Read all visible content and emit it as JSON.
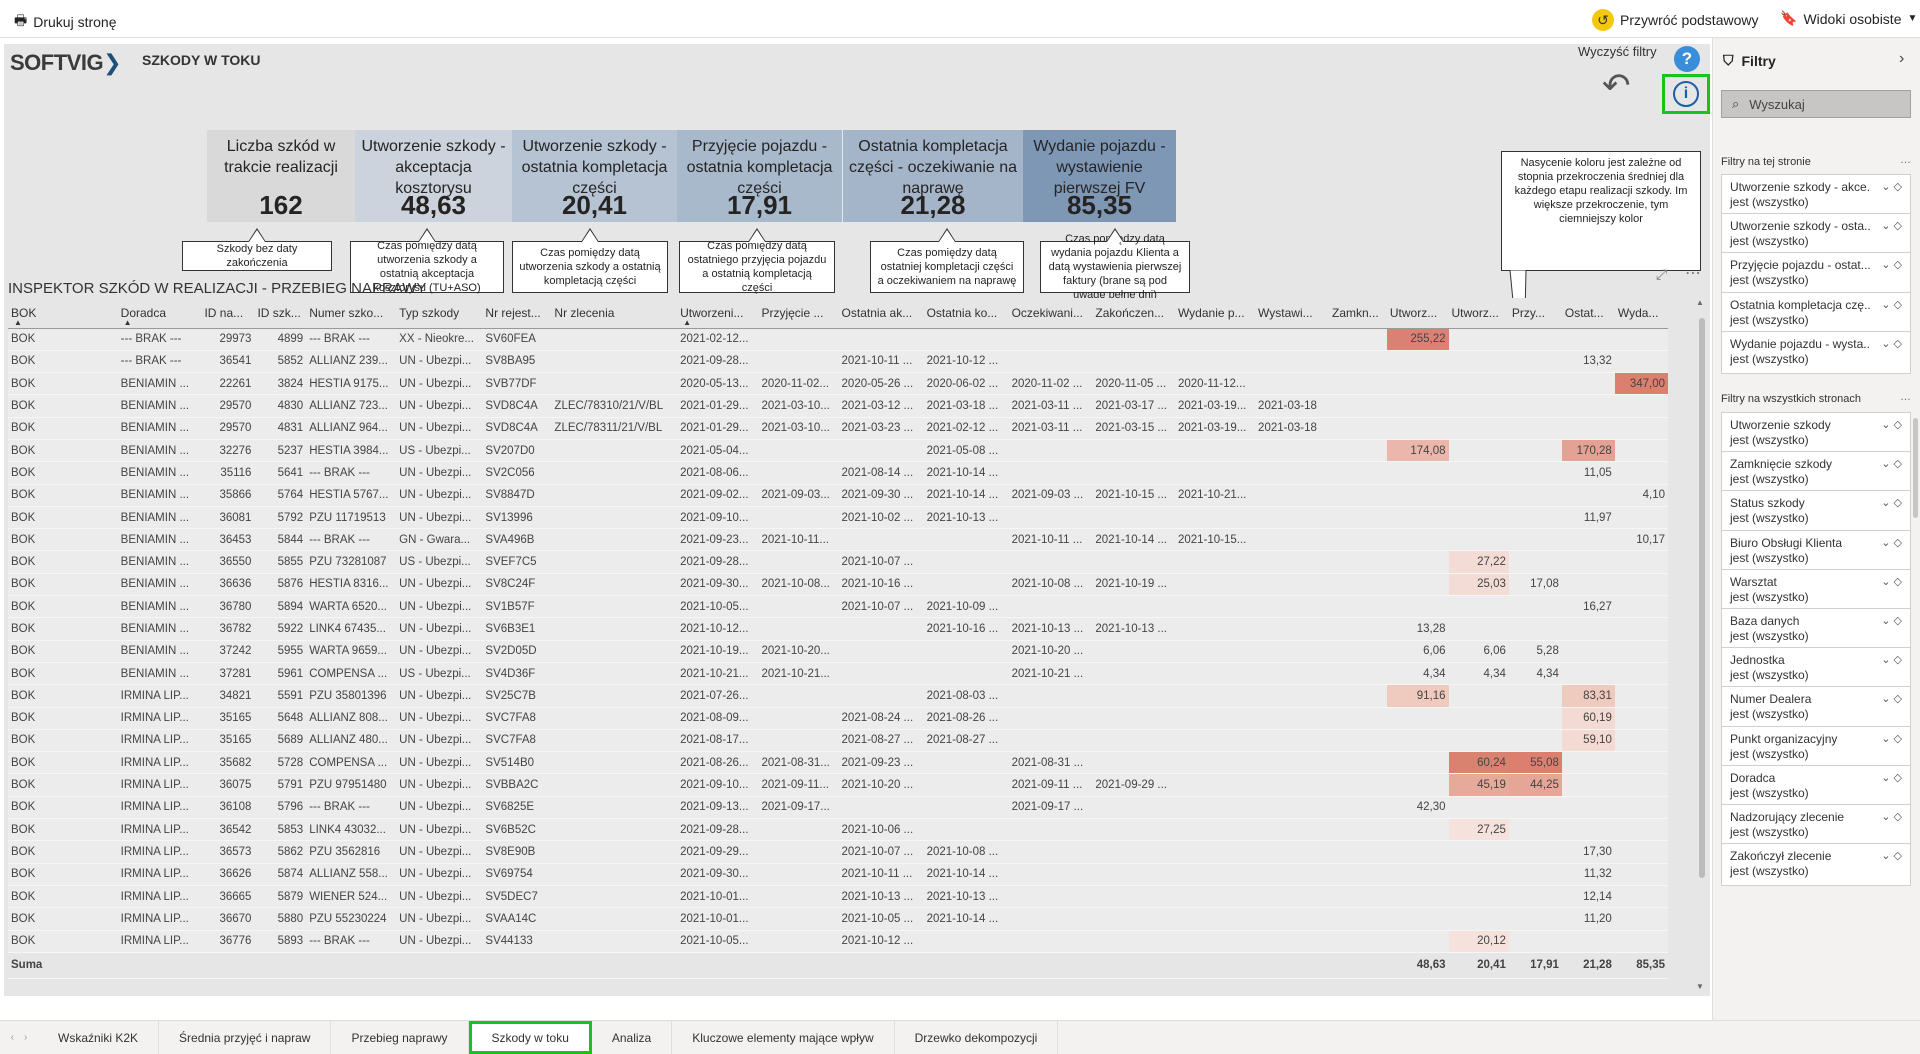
{
  "toolbar": {
    "print_label": "Drukuj stronę",
    "reset_label": "Przywróć podstawowy",
    "views_label": "Widoki osobiste"
  },
  "report": {
    "logo": "SOFTVIG",
    "title": "SZKODY W TOKU",
    "clear_filters": "Wyczyść filtry",
    "help_glyph": "?",
    "info_glyph": "i"
  },
  "kpis": [
    {
      "label": "Liczba szkód w trakcie realizacji",
      "value": "162",
      "bg": "#d9d9d9"
    },
    {
      "label": "Utworzenie szkody - akceptacja kosztorysu",
      "value": "48,63",
      "bg": "#ccd3dc"
    },
    {
      "label": "Utworzenie szkody - ostatnia kompletacja części",
      "value": "20,41",
      "bg": "#b5c3d3"
    },
    {
      "label": "Przyjęcie pojazdu - ostatnia kompletacja części",
      "value": "17,91",
      "bg": "#a9b9cc"
    },
    {
      "label": "Ostatnia kompletacja części - oczekiwanie na naprawę",
      "value": "21,28",
      "bg": "#a5b5c9"
    },
    {
      "label": "Wydanie pojazdu - wystawienie pierwszej FV",
      "value": "85,35",
      "bg": "#7e97b5"
    }
  ],
  "callouts": [
    "Szkody bez daty zakończenia",
    "Czas pomiędzy datą utworzenia szkody a ostatnią akceptacja kosztorysu (TU+ASO)",
    "Czas pomiędzy datą utworzenia szkody a ostatnią kompletacją części",
    "Czas pomiędzy datą ostatniego przyjęcia pojazdu a ostatnią kompletacją części",
    "Czas pomiędzy datą ostatniej kompletacji części a oczekiwaniem na naprawę",
    "Czas pomiędzy datą wydania pojazdu Klienta a datą wystawienia pierwszej faktury (brane są pod uwagę pełne dni)"
  ],
  "note": "Nasycenie koloru jest zależne od stopnia przekroczenia średniej dla każdego etapu realizacji szkody. Im większe przekroczenie, tym ciemniejszy kolor",
  "table": {
    "title": "INSPEKTOR SZKÓD W REALIZACJI - PRZEBIEG NAPRAWY",
    "columns": [
      "BOK",
      "Doradca",
      "ID na...",
      "ID szk...",
      "Numer szko...",
      "Typ szkody",
      "Nr rejest...",
      "Nr zlecenia",
      "Utworzeni...",
      "Przyjęcie ...",
      "Ostatnia ak...",
      "Ostatnia ko...",
      "Oczekiwani...",
      "Zakończen...",
      "Wydanie p...",
      "Wystawi...",
      "Zamkn...",
      "Utworz...",
      "Utworz...",
      "Przy...",
      "Ostat...",
      "Wyda..."
    ],
    "rows": [
      [
        "BOK",
        "--- BRAK ---",
        "29973",
        "4899",
        "--- BRAK ---",
        "XX - Nieokre...",
        "SV60FEA",
        "",
        "2021-02-12...",
        "",
        "",
        "",
        "",
        "",
        "",
        "",
        "",
        "255,22",
        "",
        "",
        "",
        ""
      ],
      [
        "BOK",
        "--- BRAK ---",
        "36541",
        "5852",
        "ALLIANZ 239...",
        "UN - Ubezpi...",
        "SV8BA95",
        "",
        "2021-09-28...",
        "",
        "2021-10-11 ...",
        "2021-10-12 ...",
        "",
        "",
        "",
        "",
        "",
        "",
        "",
        "",
        "13,32",
        ""
      ],
      [
        "BOK",
        "BENIAMIN ...",
        "22261",
        "3824",
        "HESTIA 9175...",
        "UN - Ubezpi...",
        "SVB77DF",
        "",
        "2020-05-13...",
        "2020-11-02...",
        "2020-05-26 ...",
        "2020-06-02 ...",
        "2020-11-02 ...",
        "2020-11-05 ...",
        "2020-11-12...",
        "",
        "",
        "",
        "",
        "",
        "",
        "347,00"
      ],
      [
        "BOK",
        "BENIAMIN ...",
        "29570",
        "4830",
        "ALLIANZ 723...",
        "UN - Ubezpi...",
        "SVD8C4A",
        "ZLEC/78310/21/V/BL",
        "2021-01-29...",
        "2021-03-10...",
        "2021-03-12 ...",
        "2021-03-18 ...",
        "2021-03-11 ...",
        "2021-03-17 ...",
        "2021-03-19...",
        "2021-03-18",
        "",
        "",
        "",
        "",
        "",
        ""
      ],
      [
        "BOK",
        "BENIAMIN ...",
        "29570",
        "4831",
        "ALLIANZ 964...",
        "UN - Ubezpi...",
        "SVD8C4A",
        "ZLEC/78311/21/V/BL",
        "2021-01-29...",
        "2021-03-10...",
        "2021-03-23 ...",
        "2021-02-12 ...",
        "2021-03-11 ...",
        "2021-03-15 ...",
        "2021-03-19...",
        "2021-03-18",
        "",
        "",
        "",
        "",
        "",
        ""
      ],
      [
        "BOK",
        "BENIAMIN ...",
        "32276",
        "5237",
        "HESTIA 3984...",
        "US - Ubezpi...",
        "SV207D0",
        "",
        "2021-05-04...",
        "",
        "",
        "2021-05-08 ...",
        "",
        "",
        "",
        "",
        "",
        "174,08",
        "",
        "",
        "170,28",
        ""
      ],
      [
        "BOK",
        "BENIAMIN ...",
        "35116",
        "5641",
        "--- BRAK ---",
        "UN - Ubezpi...",
        "SV2C056",
        "",
        "2021-08-06...",
        "",
        "2021-08-14 ...",
        "2021-10-14 ...",
        "",
        "",
        "",
        "",
        "",
        "",
        "",
        "",
        "11,05",
        ""
      ],
      [
        "BOK",
        "BENIAMIN ...",
        "35866",
        "5764",
        "HESTIA 5767...",
        "UN - Ubezpi...",
        "SV8847D",
        "",
        "2021-09-02...",
        "2021-09-03...",
        "2021-09-30 ...",
        "2021-10-14 ...",
        "2021-09-03 ...",
        "2021-10-15 ...",
        "2021-10-21...",
        "",
        "",
        "",
        "",
        "",
        "",
        "4,10"
      ],
      [
        "BOK",
        "BENIAMIN ...",
        "36081",
        "5792",
        "PZU 11719513",
        "UN - Ubezpi...",
        "SV13996",
        "",
        "2021-09-10...",
        "",
        "2021-10-02 ...",
        "2021-10-13 ...",
        "",
        "",
        "",
        "",
        "",
        "",
        "",
        "",
        "11,97",
        ""
      ],
      [
        "BOK",
        "BENIAMIN ...",
        "36453",
        "5844",
        "--- BRAK ---",
        "GN - Gwara...",
        "SVA496B",
        "",
        "2021-09-23...",
        "2021-10-11...",
        "",
        "",
        "2021-10-11 ...",
        "2021-10-14 ...",
        "2021-10-15...",
        "",
        "",
        "",
        "",
        "",
        "",
        "10,17"
      ],
      [
        "BOK",
        "BENIAMIN ...",
        "36550",
        "5855",
        "PZU 73281087",
        "US - Ubezpi...",
        "SVEF7C5",
        "",
        "2021-09-28...",
        "",
        "2021-10-07 ...",
        "",
        "",
        "",
        "",
        "",
        "",
        "",
        "27,22",
        "",
        "",
        ""
      ],
      [
        "BOK",
        "BENIAMIN ...",
        "36636",
        "5876",
        "HESTIA 8316...",
        "UN - Ubezpi...",
        "SV8C24F",
        "",
        "2021-09-30...",
        "2021-10-08...",
        "2021-10-16 ...",
        "",
        "2021-10-08 ...",
        "2021-10-19 ...",
        "",
        "",
        "",
        "",
        "25,03",
        "17,08",
        "",
        ""
      ],
      [
        "BOK",
        "BENIAMIN ...",
        "36780",
        "5894",
        "WARTA 6520...",
        "UN - Ubezpi...",
        "SV1B57F",
        "",
        "2021-10-05...",
        "",
        "2021-10-07 ...",
        "2021-10-09 ...",
        "",
        "",
        "",
        "",
        "",
        "",
        "",
        "",
        "16,27",
        ""
      ],
      [
        "BOK",
        "BENIAMIN ...",
        "36782",
        "5922",
        "LINK4 67435...",
        "UN - Ubezpi...",
        "SV6B3E1",
        "",
        "2021-10-12...",
        "",
        "",
        "2021-10-16 ...",
        "2021-10-13 ...",
        "2021-10-13 ...",
        "",
        "",
        "",
        "13,28",
        "",
        "",
        "",
        ""
      ],
      [
        "BOK",
        "BENIAMIN ...",
        "37242",
        "5955",
        "WARTA 9659...",
        "UN - Ubezpi...",
        "SV2D05D",
        "",
        "2021-10-19...",
        "2021-10-20...",
        "",
        "",
        "2021-10-20 ...",
        "",
        "",
        "",
        "",
        "6,06",
        "6,06",
        "5,28",
        "",
        ""
      ],
      [
        "BOK",
        "BENIAMIN ...",
        "37281",
        "5961",
        "COMPENSA ...",
        "US - Ubezpi...",
        "SV4D36F",
        "",
        "2021-10-21...",
        "2021-10-21...",
        "",
        "",
        "2021-10-21 ...",
        "",
        "",
        "",
        "",
        "4,34",
        "4,34",
        "4,34",
        "",
        ""
      ],
      [
        "BOK",
        "IRMINA LIP...",
        "34821",
        "5591",
        "PZU 35801396",
        "UN - Ubezpi...",
        "SV25C7B",
        "",
        "2021-07-26...",
        "",
        "",
        "2021-08-03 ...",
        "",
        "",
        "",
        "",
        "",
        "91,16",
        "",
        "",
        "83,31",
        ""
      ],
      [
        "BOK",
        "IRMINA LIP...",
        "35165",
        "5648",
        "ALLIANZ 808...",
        "UN - Ubezpi...",
        "SVC7FA8",
        "",
        "2021-08-09...",
        "",
        "2021-08-24 ...",
        "2021-08-26 ...",
        "",
        "",
        "",
        "",
        "",
        "",
        "",
        "",
        "60,19",
        ""
      ],
      [
        "BOK",
        "IRMINA LIP...",
        "35165",
        "5689",
        "ALLIANZ 480...",
        "UN - Ubezpi...",
        "SVC7FA8",
        "",
        "2021-08-17...",
        "",
        "2021-08-27 ...",
        "2021-08-27 ...",
        "",
        "",
        "",
        "",
        "",
        "",
        "",
        "",
        "59,10",
        ""
      ],
      [
        "BOK",
        "IRMINA LIP...",
        "35682",
        "5728",
        "COMPENSA ...",
        "UN - Ubezpi...",
        "SV514B0",
        "",
        "2021-08-26...",
        "2021-08-31...",
        "2021-09-23 ...",
        "",
        "2021-08-31 ...",
        "",
        "",
        "",
        "",
        "",
        "60,24",
        "55,08",
        "",
        ""
      ],
      [
        "BOK",
        "IRMINA LIP...",
        "36075",
        "5791",
        "PZU 97951480",
        "UN - Ubezpi...",
        "SVBBA2C",
        "",
        "2021-09-10...",
        "2021-09-11...",
        "2021-10-20 ...",
        "",
        "2021-09-11 ...",
        "2021-09-29 ...",
        "",
        "",
        "",
        "",
        "45,19",
        "44,25",
        "",
        ""
      ],
      [
        "BOK",
        "IRMINA LIP...",
        "36108",
        "5796",
        "--- BRAK ---",
        "UN - Ubezpi...",
        "SV6825E",
        "",
        "2021-09-13...",
        "2021-09-17...",
        "",
        "",
        "2021-09-17 ...",
        "",
        "",
        "",
        "",
        "42,30",
        "",
        "",
        "",
        ""
      ],
      [
        "BOK",
        "IRMINA LIP...",
        "36542",
        "5853",
        "LINK4 43032...",
        "UN - Ubezpi...",
        "SV6B52C",
        "",
        "2021-09-28...",
        "",
        "2021-10-06 ...",
        "",
        "",
        "",
        "",
        "",
        "",
        "",
        "27,25",
        "",
        "",
        ""
      ],
      [
        "BOK",
        "IRMINA LIP...",
        "36573",
        "5862",
        "PZU 3562816",
        "UN - Ubezpi...",
        "SV8E90B",
        "",
        "2021-09-29...",
        "",
        "2021-10-07 ...",
        "2021-10-08 ...",
        "",
        "",
        "",
        "",
        "",
        "",
        "",
        "",
        "17,30",
        ""
      ],
      [
        "BOK",
        "IRMINA LIP...",
        "36626",
        "5874",
        "ALLIANZ 558...",
        "UN - Ubezpi...",
        "SV69754",
        "",
        "2021-09-30...",
        "",
        "2021-10-11 ...",
        "2021-10-14 ...",
        "",
        "",
        "",
        "",
        "",
        "",
        "",
        "",
        "11,32",
        ""
      ],
      [
        "BOK",
        "IRMINA LIP...",
        "36665",
        "5879",
        "WIENER 524...",
        "UN - Ubezpi...",
        "SV5DEC7",
        "",
        "2021-10-01...",
        "",
        "2021-10-13 ...",
        "2021-10-13 ...",
        "",
        "",
        "",
        "",
        "",
        "",
        "",
        "",
        "12,14",
        ""
      ],
      [
        "BOK",
        "IRMINA LIP...",
        "36670",
        "5880",
        "PZU 55230224",
        "UN - Ubezpi...",
        "SVAA14C",
        "",
        "2021-10-01...",
        "",
        "2021-10-05 ...",
        "2021-10-14 ...",
        "",
        "",
        "",
        "",
        "",
        "",
        "",
        "",
        "11,20",
        ""
      ],
      [
        "BOK",
        "IRMINA LIP...",
        "36776",
        "5893",
        "--- BRAK ---",
        "UN - Ubezpi...",
        "SV44133",
        "",
        "2021-10-05...",
        "",
        "2021-10-12 ...",
        "",
        "",
        "",
        "",
        "",
        "",
        "",
        "20,12",
        "",
        "",
        ""
      ]
    ],
    "highlights": {
      "0-17": "#d98273",
      "2-21": "#dd7f6f",
      "5-17": "#ebb6ab",
      "5-20": "#e3a293",
      "10-18": "#f3dcd6",
      "11-18": "#f3dcd6",
      "16-17": "#efcabf",
      "16-20": "#efcabf",
      "17-20": "#f3dad3",
      "18-20": "#f3dad3",
      "19-18": "#d9826f",
      "19-19": "#dd7f6f",
      "20-18": "#e7a999",
      "20-19": "#e6a697",
      "22-18": "#f6e2dd",
      "27-18": "#f6e2dd"
    },
    "sum_label": "Suma",
    "sums": [
      "48,63",
      "20,41",
      "17,91",
      "21,28",
      "85,35"
    ]
  },
  "filters": {
    "title": "Filtry",
    "search_placeholder": "Wyszukaj",
    "page_section": "Filtry na tej stronie",
    "all_section": "Filtry na wszystkich stronach",
    "page_filters": [
      {
        "name": "Utworzenie szkody - akce...",
        "state": "jest (wszystko)"
      },
      {
        "name": "Utworzenie szkody - osta...",
        "state": "jest (wszystko)"
      },
      {
        "name": "Przyjęcie pojazdu - ostat...",
        "state": "jest (wszystko)"
      },
      {
        "name": "Ostatnia kompletacja czę...",
        "state": "jest (wszystko)"
      },
      {
        "name": "Wydanie pojazdu - wysta...",
        "state": "jest (wszystko)"
      }
    ],
    "all_filters": [
      {
        "name": "Utworzenie szkody",
        "state": "jest (wszystko)"
      },
      {
        "name": "Zamknięcie szkody",
        "state": "jest (wszystko)"
      },
      {
        "name": "Status szkody",
        "state": "jest (wszystko)"
      },
      {
        "name": "Biuro Obsługi Klienta",
        "state": "jest (wszystko)"
      },
      {
        "name": "Warsztat",
        "state": "jest (wszystko)"
      },
      {
        "name": "Baza danych",
        "state": "jest (wszystko)"
      },
      {
        "name": "Jednostka",
        "state": "jest (wszystko)"
      },
      {
        "name": "Numer Dealera",
        "state": "jest (wszystko)"
      },
      {
        "name": "Punkt organizacyjny",
        "state": "jest (wszystko)"
      },
      {
        "name": "Doradca",
        "state": "jest (wszystko)"
      },
      {
        "name": "Nadzorujący zlecenie",
        "state": "jest (wszystko)"
      },
      {
        "name": "Zakończył zlecenie",
        "state": "jest (wszystko)"
      }
    ]
  },
  "tabs": [
    {
      "label": "Wskaźniki K2K",
      "active": false
    },
    {
      "label": "Średnia przyjęć i napraw",
      "active": false
    },
    {
      "label": "Przebieg naprawy",
      "active": false
    },
    {
      "label": "Szkody w toku",
      "active": true
    },
    {
      "label": "Analiza",
      "active": false
    },
    {
      "label": "Kluczowe elementy mające wpływ",
      "active": false
    },
    {
      "label": "Drzewko dekompozycji",
      "active": false
    }
  ]
}
